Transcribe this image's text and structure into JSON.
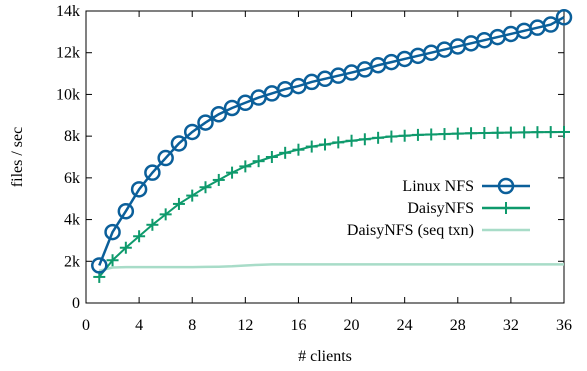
{
  "chart_data": {
    "type": "line",
    "xlabel": "# clients",
    "ylabel": "files / sec",
    "xlim": [
      0,
      36
    ],
    "ylim": [
      0,
      14000
    ],
    "x_ticks": [
      0,
      4,
      8,
      12,
      16,
      20,
      24,
      28,
      32,
      36
    ],
    "x_tick_labels": [
      "0",
      "4",
      "8",
      "12",
      "16",
      "20",
      "24",
      "28",
      "32",
      "36"
    ],
    "y_ticks": [
      0,
      2000,
      4000,
      6000,
      8000,
      10000,
      12000,
      14000
    ],
    "y_tick_labels": [
      "0",
      "2k",
      "4k",
      "6k",
      "8k",
      "10k",
      "12k",
      "14k"
    ],
    "grid": false,
    "legend_position": "right-center",
    "x": [
      1,
      2,
      3,
      4,
      5,
      6,
      7,
      8,
      9,
      10,
      11,
      12,
      13,
      14,
      15,
      16,
      17,
      18,
      19,
      20,
      21,
      22,
      23,
      24,
      25,
      26,
      27,
      28,
      29,
      30,
      31,
      32,
      33,
      34,
      35,
      36
    ],
    "series": [
      {
        "name": "Linux NFS",
        "color": "#0b5f9a",
        "marker": "circle",
        "values": [
          1800,
          3400,
          4400,
          5450,
          6250,
          6950,
          7650,
          8200,
          8650,
          9050,
          9350,
          9600,
          9850,
          10050,
          10250,
          10400,
          10600,
          10750,
          10900,
          11050,
          11200,
          11400,
          11550,
          11700,
          11850,
          12000,
          12150,
          12300,
          12450,
          12600,
          12750,
          12900,
          13050,
          13200,
          13350,
          13700
        ]
      },
      {
        "name": "DaisyNFS",
        "color": "#0e9a6c",
        "marker": "plus",
        "values": [
          1250,
          2050,
          2650,
          3200,
          3750,
          4250,
          4750,
          5150,
          5550,
          5900,
          6250,
          6550,
          6800,
          7000,
          7200,
          7350,
          7500,
          7600,
          7700,
          7780,
          7850,
          7920,
          7980,
          8020,
          8060,
          8080,
          8100,
          8120,
          8140,
          8150,
          8160,
          8170,
          8180,
          8190,
          8195,
          8200
        ]
      },
      {
        "name": "DaisyNFS (seq txn)",
        "color": "#a8dcc8",
        "marker": "none",
        "values": [
          1550,
          1700,
          1720,
          1720,
          1720,
          1720,
          1720,
          1720,
          1730,
          1740,
          1760,
          1800,
          1830,
          1850,
          1850,
          1850,
          1850,
          1850,
          1850,
          1850,
          1850,
          1850,
          1850,
          1850,
          1850,
          1850,
          1850,
          1850,
          1850,
          1850,
          1850,
          1850,
          1850,
          1850,
          1850,
          1850
        ]
      }
    ]
  }
}
